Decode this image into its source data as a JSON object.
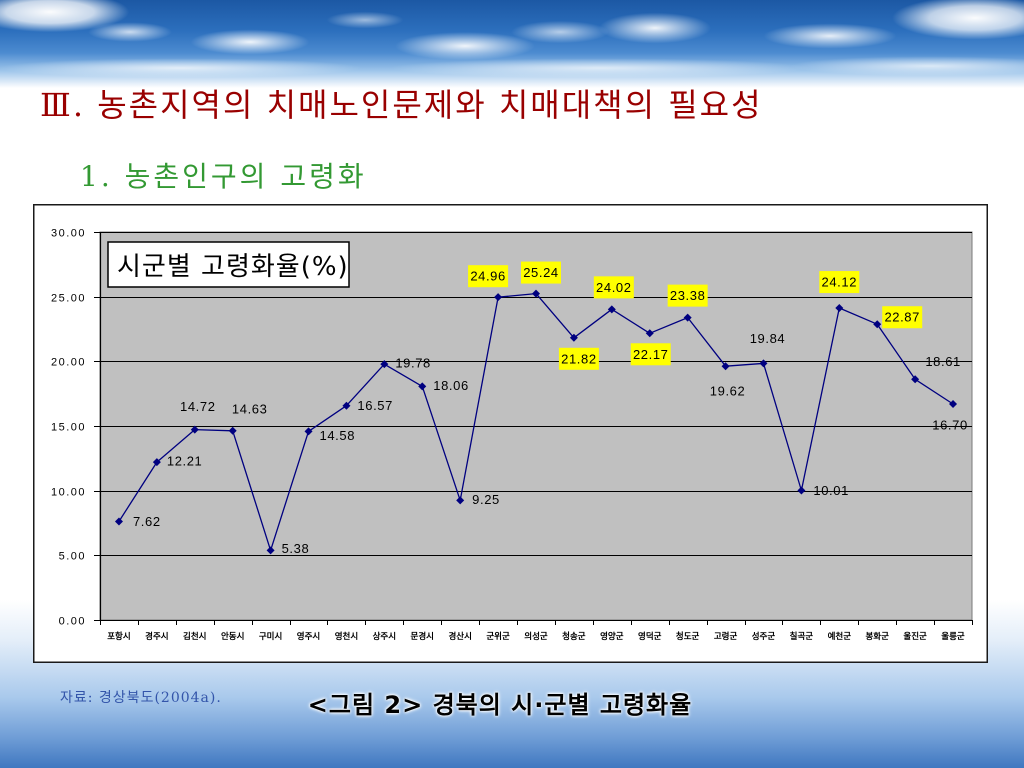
{
  "slide": {
    "title": "Ⅲ. 농촌지역의 치매노인문제와 치매대책의 필요성",
    "subtitle": "1. 농촌인구의 고령화",
    "source": "자료: 경상북도(2004a).",
    "caption": "<그림 2> 경북의 시·군별 고령화율",
    "colors": {
      "title": "#990000",
      "subtitle": "#339933",
      "source": "#3355aa",
      "caption": "#000000"
    }
  },
  "chart_data": {
    "type": "line",
    "title": "시군별 고령화율(%)",
    "categories": [
      "포항시",
      "경주시",
      "김천시",
      "안동시",
      "구미시",
      "영주시",
      "영천시",
      "상주시",
      "문경시",
      "경산시",
      "군위군",
      "의성군",
      "청송군",
      "영양군",
      "영덕군",
      "청도군",
      "고령군",
      "성주군",
      "칠곡군",
      "예천군",
      "봉화군",
      "울진군",
      "울릉군"
    ],
    "series": [
      {
        "values": [
          7.62,
          12.21,
          14.72,
          14.63,
          5.38,
          14.58,
          16.57,
          19.78,
          18.06,
          9.25,
          24.96,
          25.24,
          21.82,
          24.02,
          22.17,
          23.38,
          19.62,
          19.84,
          10.01,
          24.12,
          22.87,
          18.61,
          16.7
        ],
        "color": "#000080",
        "marker": "diamond",
        "data_labels": true
      }
    ],
    "ylim": [
      0,
      30
    ],
    "yticks": [
      0,
      5,
      10,
      15,
      20,
      25,
      30
    ],
    "y_tick_labels": [
      "0.00",
      "5.00",
      "10.00",
      "15.00",
      "20.00",
      "25.00",
      "30.00"
    ],
    "grid": true,
    "legend": "none",
    "plot_background": "#C0C0C0",
    "highlight_color": "#FFFF00",
    "highlighted": [
      false,
      false,
      false,
      false,
      false,
      false,
      false,
      false,
      false,
      false,
      true,
      true,
      true,
      true,
      true,
      true,
      false,
      false,
      false,
      true,
      true,
      false,
      false
    ]
  }
}
